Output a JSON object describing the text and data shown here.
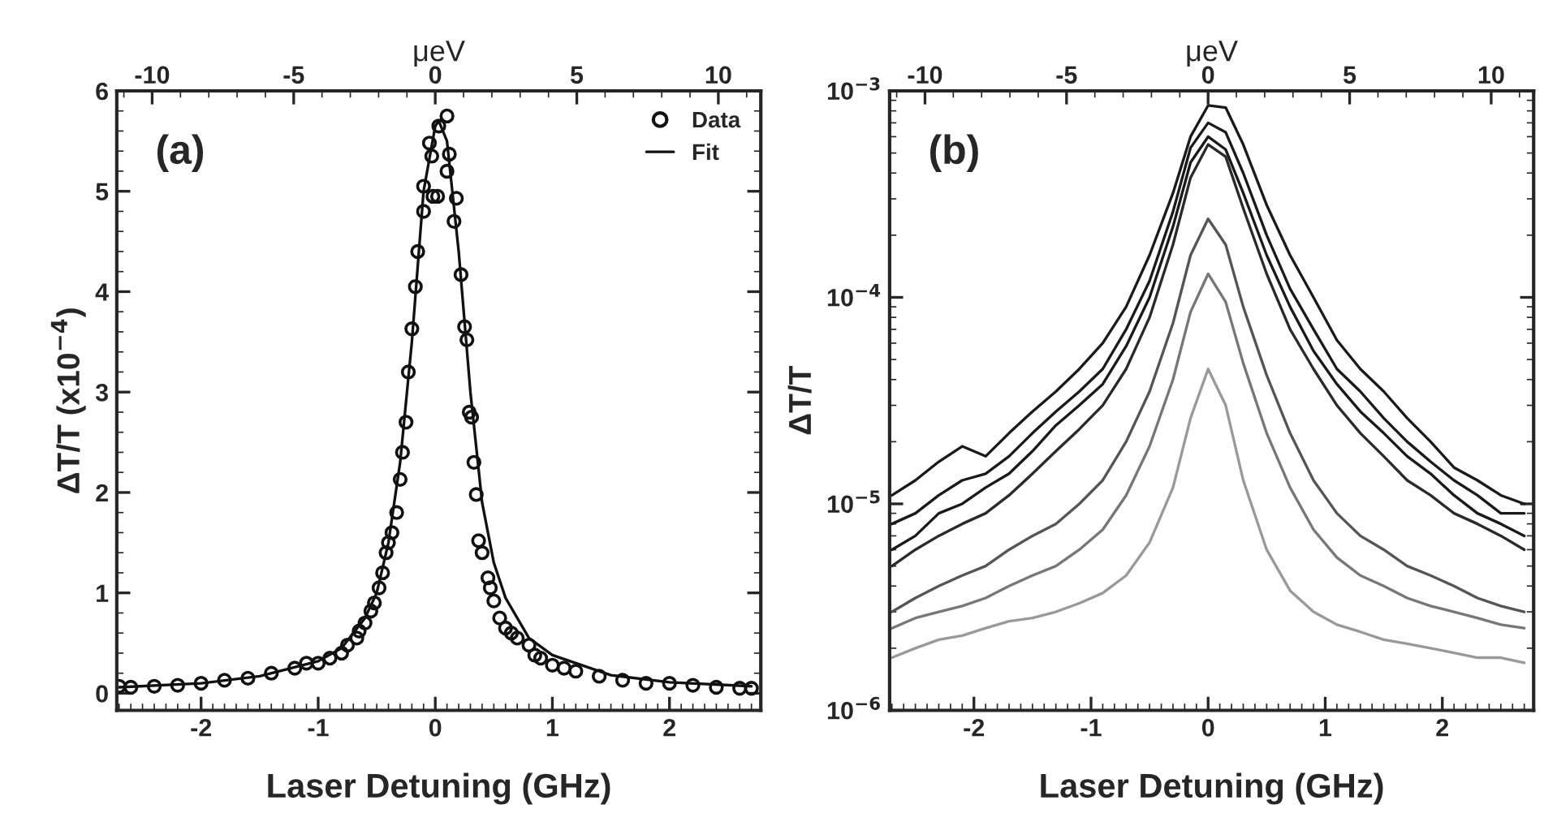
{
  "chart_data": [
    {
      "type": "scatter",
      "annotations": [
        "(a)"
      ],
      "xlabel": "Laser Detuning (GHz)",
      "x2label": "μeV",
      "ylabel": "ΔT/T (x10$^{−4}$)",
      "xlim": [
        -2.72,
        2.78
      ],
      "xticks": [
        -2,
        -1,
        0,
        1,
        2
      ],
      "x2lim": [
        -11.25,
        11.5
      ],
      "x2ticks": [
        -10,
        -5,
        0,
        5,
        10
      ],
      "ylim": [
        -0.17,
        6
      ],
      "yticks": [
        0,
        1,
        2,
        3,
        4,
        5,
        6
      ],
      "grid": false,
      "legend": "top right",
      "series": [
        {
          "name": "Data",
          "type": "scatter",
          "marker": "circle",
          "color": "#111111",
          "x": [
            0.1,
            0.03,
            -0.05,
            -0.03,
            0.12,
            0.1,
            -0.1,
            -0.02,
            0.02,
            0.18,
            -0.1,
            0.16,
            -0.15,
            0.22,
            -0.17,
            -0.2,
            0.25,
            0.27,
            -0.23,
            -0.25,
            0.29,
            0.31,
            -0.28,
            0.33,
            -0.3,
            0.35,
            -0.33,
            -0.37,
            -0.4,
            0.37,
            0.4,
            -0.42,
            -0.45,
            0.45,
            -0.48,
            0.47,
            0.5,
            -0.52,
            -0.55,
            0.55,
            -0.6,
            -0.65,
            -0.67,
            0.6,
            0.65,
            0.7,
            0.8,
            -0.75,
            -0.8,
            0.85,
            0.9,
            -0.9,
            -1.0,
            1.0,
            -1.1,
            1.1,
            -1.2,
            1.2,
            -1.4,
            1.4,
            -1.6,
            1.6,
            -1.8,
            1.8,
            -2.0,
            2.0,
            -2.2,
            2.2,
            -2.4,
            2.4,
            -2.6,
            2.6,
            -2.7,
            2.7
          ],
          "values": [
            5.75,
            5.65,
            5.48,
            5.35,
            5.37,
            5.2,
            5.05,
            4.95,
            4.95,
            4.93,
            4.8,
            4.7,
            4.4,
            4.17,
            4.05,
            3.63,
            3.65,
            3.52,
            3.2,
            2.7,
            2.8,
            2.75,
            2.4,
            2.3,
            2.13,
            1.98,
            1.8,
            1.6,
            1.5,
            1.52,
            1.4,
            1.4,
            1.2,
            1.15,
            1.05,
            1.05,
            0.92,
            0.9,
            0.82,
            0.75,
            0.7,
            0.62,
            0.55,
            0.65,
            0.6,
            0.55,
            0.48,
            0.48,
            0.4,
            0.38,
            0.35,
            0.35,
            0.3,
            0.28,
            0.3,
            0.25,
            0.25,
            0.22,
            0.2,
            0.17,
            0.15,
            0.13,
            0.13,
            0.1,
            0.1,
            0.1,
            0.08,
            0.08,
            0.07,
            0.06,
            0.06,
            0.05,
            0.07,
            0.05
          ]
        },
        {
          "name": "Fit",
          "type": "line",
          "line_style": "solid",
          "color": "#111111",
          "x": [
            -2.7,
            -2.0,
            -1.5,
            -1.0,
            -0.8,
            -0.6,
            -0.5,
            -0.4,
            -0.3,
            -0.2,
            -0.1,
            0.0,
            0.03,
            0.1,
            0.2,
            0.3,
            0.4,
            0.5,
            0.6,
            0.8,
            1.0,
            1.5,
            2.0,
            2.7
          ],
          "values": [
            0.06,
            0.1,
            0.17,
            0.32,
            0.45,
            0.75,
            1.0,
            1.5,
            2.3,
            3.5,
            5.0,
            5.65,
            5.7,
            5.5,
            4.4,
            3.0,
            1.9,
            1.3,
            0.95,
            0.55,
            0.38,
            0.18,
            0.11,
            0.07
          ]
        }
      ]
    },
    {
      "type": "line",
      "annotations": [
        "(b)"
      ],
      "xlabel": "Laser Detuning (GHz)",
      "x2label": "μeV",
      "ylabel": "ΔT/T",
      "xlim": [
        -2.72,
        2.78
      ],
      "xticks": [
        -2,
        -1,
        0,
        1,
        2
      ],
      "x2lim": [
        -11.25,
        11.5
      ],
      "x2ticks": [
        -10,
        -5,
        0,
        5,
        10
      ],
      "log": "y",
      "ylim": [
        1e-06,
        0.001
      ],
      "yticks": [
        {
          "value": 1e-06,
          "label": "10$^{−6}$"
        },
        {
          "value": 1e-05,
          "label": "10$^{−5}$"
        },
        {
          "value": 0.0001,
          "label": "10$^{−4}$"
        },
        {
          "value": 0.001,
          "label": "10$^{−3}$"
        }
      ],
      "grid": false,
      "line_style": "solid",
      "marker": "none",
      "x": [
        -2.7,
        -2.5,
        -2.3,
        -2.1,
        -1.9,
        -1.7,
        -1.5,
        -1.3,
        -1.1,
        -0.9,
        -0.7,
        -0.5,
        -0.3,
        -0.15,
        0,
        0.15,
        0.3,
        0.5,
        0.7,
        0.9,
        1.1,
        1.3,
        1.5,
        1.7,
        1.9,
        2.1,
        2.3,
        2.5,
        2.7
      ],
      "series": [
        {
          "color": "#1a1a1a",
          "values": [
            1.1e-05,
            1.3e-05,
            1.6e-05,
            1.9e-05,
            1.7e-05,
            2.2e-05,
            2.8e-05,
            3.5e-05,
            4.5e-05,
            6e-05,
            9e-05,
            0.00016,
            0.00032,
            0.0006,
            0.00085,
            0.00083,
            0.00055,
            0.00028,
            0.00016,
            0.0001,
            6.2e-05,
            4.5e-05,
            3.5e-05,
            2.6e-05,
            2e-05,
            1.5e-05,
            1.3e-05,
            1.1e-05,
            1e-05
          ]
        },
        {
          "color": "#1a1a1a",
          "values": [
            8e-06,
            9e-06,
            1.1e-05,
            1.3e-05,
            1.4e-05,
            1.7e-05,
            2.2e-05,
            2.8e-05,
            3.5e-05,
            4.5e-05,
            7e-05,
            0.00012,
            0.00026,
            0.00053,
            0.0007,
            0.00063,
            0.0004,
            0.0002,
            0.00011,
            7e-05,
            4.5e-05,
            3.5e-05,
            2.6e-05,
            2e-05,
            1.6e-05,
            1.3e-05,
            1.1e-05,
            9e-06,
            9e-06
          ]
        },
        {
          "color": "#1a1a1a",
          "values": [
            6e-06,
            7e-06,
            9e-06,
            1e-05,
            1.2e-05,
            1.4e-05,
            1.8e-05,
            2.4e-05,
            3e-05,
            3.8e-05,
            5.8e-05,
            0.0001,
            0.00022,
            0.00045,
            0.0006,
            0.00052,
            0.00032,
            0.00016,
            9e-05,
            5.5e-05,
            3.8e-05,
            2.8e-05,
            2.2e-05,
            1.7e-05,
            1.4e-05,
            1.1e-05,
            9e-06,
            8e-06,
            7e-06
          ]
        },
        {
          "color": "#2a2a2a",
          "values": [
            5e-06,
            6e-06,
            7e-06,
            8e-06,
            9e-06,
            1.1e-05,
            1.4e-05,
            1.8e-05,
            2.3e-05,
            3e-05,
            4.5e-05,
            8e-05,
            0.00018,
            0.00038,
            0.00055,
            0.00048,
            0.00027,
            0.00013,
            7e-05,
            4.5e-05,
            3e-05,
            2.2e-05,
            1.7e-05,
            1.3e-05,
            1.1e-05,
            9e-06,
            8e-06,
            7e-06,
            6e-06
          ]
        },
        {
          "color": "#555555",
          "values": [
            3e-06,
            3.5e-06,
            4e-06,
            4.5e-06,
            5e-06,
            6e-06,
            7e-06,
            8e-06,
            1e-05,
            1.3e-05,
            2e-05,
            3.5e-05,
            7.5e-05,
            0.00016,
            0.00024,
            0.00018,
            9e-05,
            4.2e-05,
            2.2e-05,
            1.3e-05,
            9e-06,
            7e-06,
            6e-06,
            5e-06,
            4.5e-06,
            4e-06,
            3.5e-06,
            3.2e-06,
            3e-06
          ]
        },
        {
          "color": "#777777",
          "values": [
            2.5e-06,
            2.8e-06,
            3e-06,
            3.2e-06,
            3.5e-06,
            4e-06,
            4.5e-06,
            5e-06,
            6e-06,
            7.5e-06,
            1.1e-05,
            1.9e-05,
            4e-05,
            8.5e-05,
            0.00013,
            9.5e-05,
            4.8e-05,
            2.2e-05,
            1.2e-05,
            7.5e-06,
            5.5e-06,
            4.5e-06,
            4e-06,
            3.5e-06,
            3.2e-06,
            3e-06,
            2.8e-06,
            2.6e-06,
            2.5e-06
          ]
        },
        {
          "color": "#999999",
          "values": [
            1.8e-06,
            2e-06,
            2.2e-06,
            2.3e-06,
            2.5e-06,
            2.7e-06,
            2.8e-06,
            3e-06,
            3.3e-06,
            3.7e-06,
            4.5e-06,
            6.5e-06,
            1.2e-05,
            2.6e-05,
            4.5e-05,
            3e-05,
            1.3e-05,
            6e-06,
            3.8e-06,
            3e-06,
            2.6e-06,
            2.4e-06,
            2.2e-06,
            2.1e-06,
            2e-06,
            1.9e-06,
            1.8e-06,
            1.8e-06,
            1.7e-06
          ]
        }
      ]
    }
  ]
}
